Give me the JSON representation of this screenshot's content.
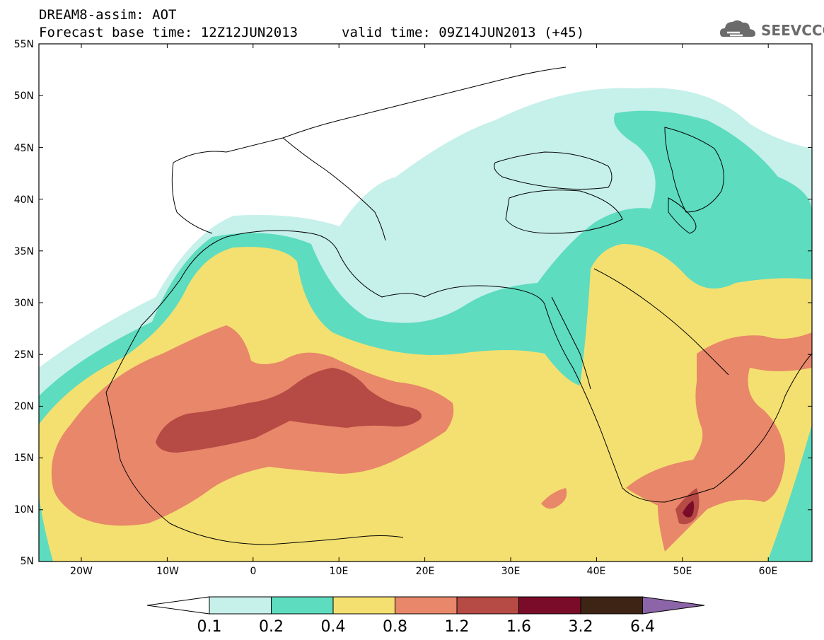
{
  "header": {
    "line1": "DREAM8-assim: AOT",
    "line2": "Forecast base time: 12Z12JUN2013",
    "valid": "valid time: 09Z14JUN2013 (+45)",
    "logo_text": "SEEVCCC"
  },
  "map": {
    "lat_labels": [
      "55N",
      "50N",
      "45N",
      "40N",
      "35N",
      "30N",
      "25N",
      "20N",
      "15N",
      "10N",
      "5N"
    ],
    "lon_labels": [
      "20W",
      "10W",
      "0",
      "10E",
      "20E",
      "30E",
      "40E",
      "50E",
      "60E"
    ]
  },
  "colorbar": {
    "labels": [
      "0.1",
      "0.2",
      "0.4",
      "0.8",
      "1.2",
      "1.6",
      "3.2",
      "6.4"
    ],
    "colors": [
      "#c6f0ea",
      "#5ddcbf",
      "#f4e070",
      "#e8876a",
      "#b64a44",
      "#7a0c2a",
      "#3d2414",
      "#8c64a8"
    ]
  },
  "colors": {
    "below_min": "#ffffff",
    "land_lines": "#000000"
  }
}
